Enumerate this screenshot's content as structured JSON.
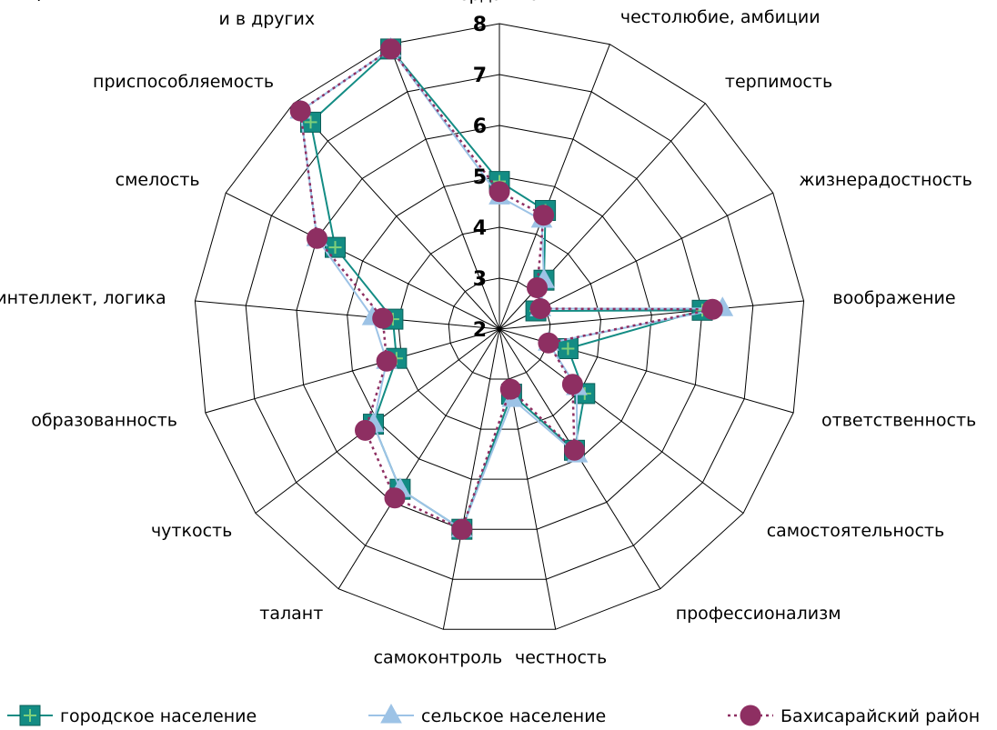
{
  "chart_data": {
    "type": "radar",
    "categories": [
      "твердая воля",
      "честолюбие, амбиции",
      "терпимость",
      "жизнерадостность",
      "воображение",
      "ответственность",
      "самостоятельность",
      "профессионализм",
      "честность",
      "самоконтроль",
      "талант",
      "чуткость",
      "образованность",
      "интеллект, логика",
      "смелость",
      "приспособляемость",
      "непримиримость к недостаткам в себе и в других"
    ],
    "rlim": [
      2,
      8
    ],
    "ticks": [
      2,
      3,
      4,
      5,
      6,
      7,
      8
    ],
    "grid": true,
    "legend_position": "bottom",
    "series": [
      {
        "name": "городское население",
        "color": "#138c84",
        "marker": "square",
        "line": "solid",
        "values": [
          4.9,
          4.5,
          3.3,
          2.8,
          6.0,
          3.4,
          4.1,
          4.8,
          3.3,
          6.0,
          5.7,
          5.1,
          4.1,
          4.1,
          5.6,
          7.5,
          7.9
        ]
      },
      {
        "name": "сельское население",
        "color": "#9dc3e6",
        "marker": "triangle",
        "line": "solid",
        "values": [
          4.6,
          4.3,
          3.3,
          2.9,
          6.4,
          3.0,
          3.9,
          4.9,
          3.4,
          6.0,
          5.7,
          5.1,
          4.3,
          4.5,
          6.0,
          7.8,
          7.9
        ]
      },
      {
        "name": "Бахисарайский район",
        "color": "#8e2f62",
        "marker": "circle",
        "line": "dotted",
        "values": [
          4.7,
          4.4,
          3.1,
          2.9,
          6.2,
          3.0,
          3.8,
          4.8,
          3.2,
          6.0,
          5.9,
          5.3,
          4.3,
          4.3,
          6.0,
          7.8,
          7.9
        ]
      }
    ]
  }
}
